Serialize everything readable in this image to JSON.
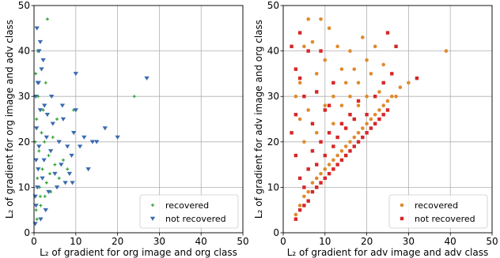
{
  "chart_data": [
    {
      "type": "scatter",
      "xlabel": "L₂ of gradient for org image and org class",
      "ylabel": "L₂ of gradient for org image and adv class",
      "xlim": [
        0,
        50
      ],
      "ylim": [
        0,
        50
      ],
      "xticks": [
        "0",
        "10",
        "20",
        "30",
        "40",
        "50"
      ],
      "yticks": [
        "0",
        "10",
        "20",
        "30",
        "40",
        "50"
      ],
      "grid": true,
      "legend_position": "bottom-right",
      "series": [
        {
          "name": "recovered",
          "marker": "plus",
          "color": "#2ca02c",
          "points": [
            [
              0.5,
              5
            ],
            [
              0.8,
              12
            ],
            [
              1.2,
              18
            ],
            [
              0.6,
              25
            ],
            [
              1.5,
              8
            ],
            [
              2.0,
              14
            ],
            [
              2.5,
              20
            ],
            [
              1.0,
              30
            ],
            [
              3.0,
              11
            ],
            [
              3.5,
              17
            ],
            [
              4.0,
              9
            ],
            [
              0.4,
              35
            ],
            [
              2.2,
              27
            ],
            [
              5.0,
              15
            ],
            [
              1.8,
              22
            ],
            [
              6.0,
              12
            ],
            [
              0.9,
              40
            ],
            [
              3.2,
              47
            ],
            [
              4.5,
              21
            ],
            [
              2.8,
              33
            ],
            [
              7.0,
              16
            ],
            [
              1.3,
              10
            ],
            [
              0.7,
              3
            ],
            [
              24.0,
              30
            ],
            [
              0.3,
              20
            ],
            [
              5.5,
              25
            ],
            [
              8.0,
              14
            ],
            [
              1.6,
              6
            ],
            [
              3.8,
              13
            ],
            [
              2.6,
              8
            ],
            [
              9.5,
              27
            ]
          ]
        },
        {
          "name": "not recovered",
          "marker": "triangle-down",
          "color": "#3a6bb0",
          "points": [
            [
              0.3,
              2
            ],
            [
              0.5,
              6
            ],
            [
              0.8,
              10
            ],
            [
              1.0,
              14
            ],
            [
              1.2,
              19
            ],
            [
              0.6,
              23
            ],
            [
              1.5,
              27
            ],
            [
              2.0,
              12
            ],
            [
              2.4,
              16
            ],
            [
              0.4,
              30
            ],
            [
              1.1,
              33
            ],
            [
              3.0,
              21
            ],
            [
              3.5,
              9
            ],
            [
              4.0,
              18
            ],
            [
              4.5,
              24
            ],
            [
              5.0,
              13
            ],
            [
              1.8,
              36
            ],
            [
              2.5,
              28
            ],
            [
              6.0,
              20
            ],
            [
              6.5,
              15
            ],
            [
              7.0,
              25
            ],
            [
              7.5,
              11
            ],
            [
              8.0,
              19
            ],
            [
              9.0,
              17
            ],
            [
              9.5,
              22
            ],
            [
              10.0,
              27
            ],
            [
              11.0,
              19
            ],
            [
              12.0,
              21
            ],
            [
              13.0,
              14
            ],
            [
              14.0,
              20
            ],
            [
              15.0,
              20
            ],
            [
              17.0,
              23
            ],
            [
              20.0,
              21
            ],
            [
              27.0,
              34
            ],
            [
              10.0,
              35
            ],
            [
              1.5,
              42
            ],
            [
              0.7,
              45
            ],
            [
              1.2,
              40
            ],
            [
              2.2,
              38
            ],
            [
              0.9,
              33
            ],
            [
              0.5,
              16
            ],
            [
              0.3,
              8
            ],
            [
              3.2,
              26
            ],
            [
              4.2,
              30
            ],
            [
              5.5,
              10
            ],
            [
              8.5,
              13
            ],
            [
              2.8,
              5
            ],
            [
              1.6,
              3
            ],
            [
              6.8,
              28
            ],
            [
              9.2,
              11
            ]
          ]
        }
      ]
    },
    {
      "type": "scatter",
      "xlabel": "L₂ of gradient for adv image and adv class",
      "ylabel": "L₂ of gradient for adv image and org class",
      "xlim": [
        0,
        50
      ],
      "ylim": [
        0,
        50
      ],
      "xticks": [
        "0",
        "10",
        "20",
        "30",
        "40",
        "50"
      ],
      "yticks": [
        "0",
        "10",
        "20",
        "30",
        "40",
        "50"
      ],
      "grid": true,
      "legend_position": "bottom-right",
      "series": [
        {
          "name": "recovered",
          "marker": "circle",
          "color": "#e08a2c",
          "points": [
            [
              3,
              4
            ],
            [
              4,
              6
            ],
            [
              5,
              8
            ],
            [
              6,
              9
            ],
            [
              7,
              11
            ],
            [
              8,
              12
            ],
            [
              9,
              13
            ],
            [
              10,
              14
            ],
            [
              11,
              15
            ],
            [
              12,
              16
            ],
            [
              13,
              17
            ],
            [
              14,
              18
            ],
            [
              15,
              19
            ],
            [
              16,
              20
            ],
            [
              17,
              21
            ],
            [
              18,
              22
            ],
            [
              19,
              23
            ],
            [
              20,
              24
            ],
            [
              21,
              25
            ],
            [
              22,
              26
            ],
            [
              23,
              27
            ],
            [
              24,
              28
            ],
            [
              25,
              29
            ],
            [
              26,
              30
            ],
            [
              28,
              32
            ],
            [
              30,
              33
            ],
            [
              5,
              20
            ],
            [
              6,
              27
            ],
            [
              8,
              35
            ],
            [
              10,
              38
            ],
            [
              12,
              30
            ],
            [
              7,
              42
            ],
            [
              9,
              47
            ],
            [
              11,
              45
            ],
            [
              14,
              36
            ],
            [
              16,
              40
            ],
            [
              18,
              33
            ],
            [
              20,
              38
            ],
            [
              22,
              41
            ],
            [
              24,
              37
            ],
            [
              4,
              33
            ],
            [
              5,
              41
            ],
            [
              6,
              47
            ],
            [
              8,
              22
            ],
            [
              10,
              28
            ],
            [
              12,
              24
            ],
            [
              14,
              28
            ],
            [
              16,
              30
            ],
            [
              18,
              28
            ],
            [
              20,
              30
            ],
            [
              3,
              30
            ],
            [
              4,
              25
            ],
            [
              13,
              41
            ],
            [
              15,
              33
            ],
            [
              17,
              36
            ],
            [
              19,
              43
            ],
            [
              21,
              35
            ],
            [
              23,
              31
            ],
            [
              39,
              40
            ],
            [
              27,
              30
            ]
          ]
        },
        {
          "name": "not recovered",
          "marker": "square",
          "color": "#d62728",
          "points": [
            [
              3,
              3
            ],
            [
              4,
              5
            ],
            [
              5,
              6
            ],
            [
              6,
              7
            ],
            [
              7,
              9
            ],
            [
              8,
              10
            ],
            [
              9,
              11
            ],
            [
              10,
              12
            ],
            [
              11,
              13
            ],
            [
              12,
              14
            ],
            [
              13,
              15
            ],
            [
              14,
              16
            ],
            [
              15,
              17
            ],
            [
              16,
              18
            ],
            [
              17,
              19
            ],
            [
              18,
              20
            ],
            [
              19,
              21
            ],
            [
              20,
              22
            ],
            [
              21,
              23
            ],
            [
              22,
              24
            ],
            [
              23,
              25
            ],
            [
              24,
              26
            ],
            [
              25,
              27
            ],
            [
              5,
              10
            ],
            [
              6,
              14
            ],
            [
              7,
              18
            ],
            [
              8,
              15
            ],
            [
              9,
              20
            ],
            [
              10,
              17
            ],
            [
              11,
              22
            ],
            [
              12,
              19
            ],
            [
              4,
              12
            ],
            [
              3,
              17
            ],
            [
              2,
              22
            ],
            [
              3,
              26
            ],
            [
              4,
              34
            ],
            [
              2,
              41
            ],
            [
              4,
              44
            ],
            [
              6,
              40
            ],
            [
              8,
              31
            ],
            [
              10,
              27
            ],
            [
              12,
              33
            ],
            [
              14,
              24
            ],
            [
              16,
              26
            ],
            [
              18,
              29
            ],
            [
              20,
              26
            ],
            [
              22,
              30
            ],
            [
              24,
              33
            ],
            [
              25,
              44
            ],
            [
              32,
              34
            ],
            [
              26,
              35
            ],
            [
              27,
              41
            ],
            [
              9,
              40
            ],
            [
              3,
              36
            ],
            [
              5,
              30
            ],
            [
              7,
              24
            ],
            [
              11,
              28
            ],
            [
              13,
              21
            ],
            [
              15,
              23
            ],
            [
              17,
              25
            ]
          ]
        }
      ]
    }
  ]
}
